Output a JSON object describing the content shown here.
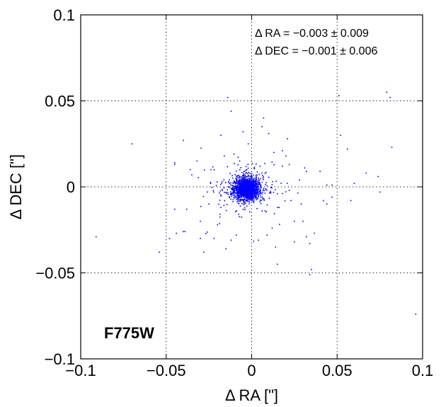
{
  "chart_data": {
    "type": "scatter",
    "title": "",
    "xlabel": "Δ RA [\"]",
    "ylabel": "Δ DEC [\"]",
    "xlim": [
      -0.1,
      0.1
    ],
    "ylim": [
      -0.1,
      0.1
    ],
    "x_ticks": [
      "−0.1",
      "−0.05",
      "0",
      "0.05",
      "0.1"
    ],
    "y_ticks": [
      "−0.1",
      "−0.05",
      "0",
      "0.05",
      "0.1"
    ],
    "grid": "dotted",
    "marker_color": "#0000ff",
    "annotations": {
      "ra_stat": "Δ RA = −0.003 ± 0.009",
      "dec_stat": "Δ DEC = −0.001 ± 0.006",
      "filter": "F775W"
    },
    "core_cluster": {
      "center": [
        -0.003,
        -0.001
      ],
      "sigma": [
        0.0035,
        0.003
      ]
    },
    "points": [
      [
        -0.07,
        0.025
      ],
      [
        -0.091,
        -0.029
      ],
      [
        -0.054,
        -0.038
      ],
      [
        -0.045,
        -0.013
      ],
      [
        -0.045,
        0.014
      ],
      [
        -0.04,
        0.027
      ],
      [
        -0.038,
        -0.013
      ],
      [
        -0.039,
        -0.026
      ],
      [
        -0.044,
        -0.027
      ],
      [
        -0.045,
        0.013
      ],
      [
        -0.035,
        0.007
      ],
      [
        -0.028,
        -0.038
      ],
      [
        -0.022,
        0.01
      ],
      [
        -0.026,
        -0.003
      ],
      [
        -0.018,
        -0.012
      ],
      [
        -0.014,
        0.052
      ],
      [
        -0.012,
        0.044
      ],
      [
        -0.005,
        0.032
      ],
      [
        -0.002,
        0.025
      ],
      [
        0.01,
        0.031
      ],
      [
        0.021,
        0.028
      ],
      [
        0.018,
        0.012
      ],
      [
        0.023,
        -0.008
      ],
      [
        0.022,
        0.013
      ],
      [
        0.031,
        0.011
      ],
      [
        0.032,
        0.009
      ],
      [
        0.029,
        -0.01
      ],
      [
        0.03,
        -0.02
      ],
      [
        0.032,
        -0.029
      ],
      [
        0.034,
        -0.033
      ],
      [
        0.035,
        -0.048
      ],
      [
        0.034,
        -0.051
      ],
      [
        0.047,
        0.001
      ],
      [
        0.051,
        0.053
      ],
      [
        0.052,
        0.03
      ],
      [
        0.056,
        0.022
      ],
      [
        0.06,
        0.002
      ],
      [
        0.058,
        -0.008
      ],
      [
        0.067,
        0.008
      ],
      [
        0.074,
        0.006
      ],
      [
        0.075,
        -0.003
      ],
      [
        0.079,
        0.055
      ],
      [
        0.081,
        0.052
      ],
      [
        0.082,
        0.023
      ],
      [
        0.096,
        -0.074
      ],
      [
        0.042,
        -0.008
      ],
      [
        0.044,
        -0.01
      ],
      [
        0.047,
        -0.006
      ],
      [
        0.015,
        -0.045
      ],
      [
        0.014,
        -0.035
      ],
      [
        0.009,
        -0.028
      ],
      [
        0.004,
        -0.031
      ],
      [
        -0.009,
        -0.028
      ],
      [
        -0.015,
        -0.036
      ],
      [
        -0.02,
        -0.022
      ],
      [
        0.025,
        -0.032
      ],
      [
        0.018,
        0.021
      ],
      [
        0.025,
        -0.02
      ],
      [
        0.028,
        0.004
      ],
      [
        -0.032,
        0.015
      ],
      [
        -0.03,
        -0.02
      ],
      [
        -0.025,
        -0.01
      ],
      [
        -0.022,
        -0.03
      ],
      [
        -0.012,
        -0.031
      ],
      [
        -0.03,
        -0.03
      ],
      [
        -0.048,
        -0.03
      ],
      [
        0.012,
        -0.024
      ],
      [
        0.016,
        -0.012
      ],
      [
        0.02,
        0.018
      ],
      [
        0.013,
        0.02
      ],
      [
        0.04,
        0.009
      ],
      [
        -0.04,
        -0.026
      ],
      [
        -0.036,
        0.01
      ],
      [
        -0.018,
        0.03
      ],
      [
        0.007,
        0.04
      ],
      [
        0.044,
        0.001
      ],
      [
        0.006,
        0.035
      ],
      [
        -0.016,
        0.018
      ],
      [
        0.022,
        -0.002
      ],
      [
        -0.024,
        0.002
      ]
    ]
  }
}
